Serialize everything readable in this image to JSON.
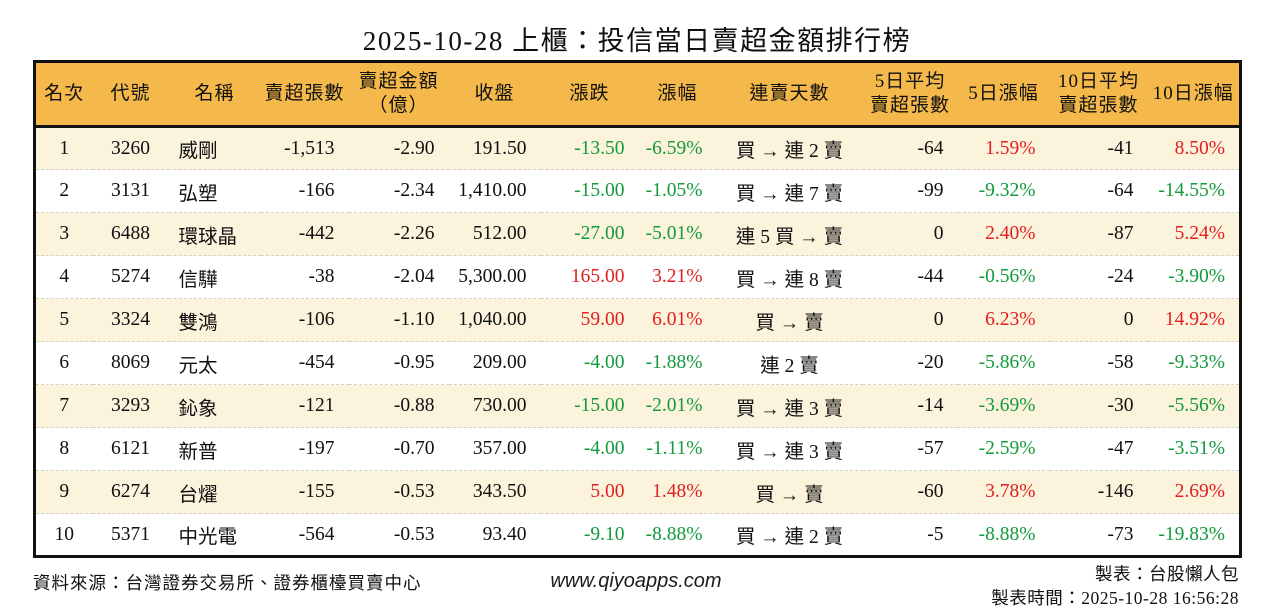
{
  "title": "2025-10-28 上櫃：投信當日賣超金額排行榜",
  "colors": {
    "header_bg": "#F4B94A",
    "row_alt_bg": "#FCF3DD",
    "up_red": "#E01F1F",
    "down_green": "#139A3C",
    "border_dark": "#111111"
  },
  "chart_data": {
    "type": "table",
    "title": "2025-10-28 上櫃：投信當日賣超金額排行榜",
    "columns": [
      "名次",
      "代號",
      "名稱",
      "賣超張數",
      "賣超金額\n（億）",
      "收盤",
      "漲跌",
      "漲幅",
      "連賣天數",
      "5日平均\n賣超張數",
      "5日漲幅",
      "10日平均\n賣超張數",
      "10日漲幅"
    ],
    "rows": [
      [
        "1",
        "3260",
        "威剛",
        "-1,513",
        "-2.90",
        "191.50",
        "-13.50",
        "-6.59%",
        "買 → 連 2 賣",
        "-64",
        "1.59%",
        "-41",
        "8.50%"
      ],
      [
        "2",
        "3131",
        "弘塑",
        "-166",
        "-2.34",
        "1,410.00",
        "-15.00",
        "-1.05%",
        "買 → 連 7 賣",
        "-99",
        "-9.32%",
        "-64",
        "-14.55%"
      ],
      [
        "3",
        "6488",
        "環球晶",
        "-442",
        "-2.26",
        "512.00",
        "-27.00",
        "-5.01%",
        "連 5 買 → 賣",
        "0",
        "2.40%",
        "-87",
        "5.24%"
      ],
      [
        "4",
        "5274",
        "信驊",
        "-38",
        "-2.04",
        "5,300.00",
        "165.00",
        "3.21%",
        "買 → 連 8 賣",
        "-44",
        "-0.56%",
        "-24",
        "-3.90%"
      ],
      [
        "5",
        "3324",
        "雙鴻",
        "-106",
        "-1.10",
        "1,040.00",
        "59.00",
        "6.01%",
        "買 → 賣",
        "0",
        "6.23%",
        "0",
        "14.92%"
      ],
      [
        "6",
        "8069",
        "元太",
        "-454",
        "-0.95",
        "209.00",
        "-4.00",
        "-1.88%",
        "連 2 賣",
        "-20",
        "-5.86%",
        "-58",
        "-9.33%"
      ],
      [
        "7",
        "3293",
        "鈊象",
        "-121",
        "-0.88",
        "730.00",
        "-15.00",
        "-2.01%",
        "買 → 連 3 賣",
        "-14",
        "-3.69%",
        "-30",
        "-5.56%"
      ],
      [
        "8",
        "6121",
        "新普",
        "-197",
        "-0.70",
        "357.00",
        "-4.00",
        "-1.11%",
        "買 → 連 3 賣",
        "-57",
        "-2.59%",
        "-47",
        "-3.51%"
      ],
      [
        "9",
        "6274",
        "台燿",
        "-155",
        "-0.53",
        "343.50",
        "5.00",
        "1.48%",
        "買 → 賣",
        "-60",
        "3.78%",
        "-146",
        "2.69%"
      ],
      [
        "10",
        "5371",
        "中光電",
        "-564",
        "-0.53",
        "93.40",
        "-9.10",
        "-8.88%",
        "買 → 連 2 賣",
        "-5",
        "-8.88%",
        "-73",
        "-19.83%"
      ]
    ],
    "color_rule": "columns 漲跌/漲幅/5日漲幅/10日漲幅: negative values green (down), positive values red (up); all other columns black"
  },
  "footer": {
    "source": "資料來源：台灣證券交易所、證券櫃檯買賣中心",
    "website": "www.qiyoapps.com",
    "maker": "製表：台股懶人包",
    "made_time": "製表時間：2025-10-28 16:56:28"
  }
}
